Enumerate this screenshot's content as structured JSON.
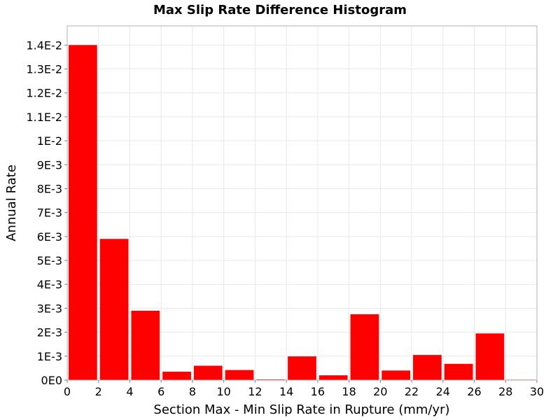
{
  "chart_data": {
    "type": "bar",
    "title": "Max Slip Rate Difference Histogram",
    "xlabel": "Section Max - Min Slip Rate in Rupture (mm/yr)",
    "ylabel": "Annual Rate",
    "xlim": [
      0,
      30
    ],
    "ylim": [
      0,
      0.0148
    ],
    "grid": true,
    "bar_color": "#ff0000",
    "bin_width": 2,
    "bins": [
      {
        "start": 0,
        "end": 2,
        "value": 0.014
      },
      {
        "start": 2,
        "end": 4,
        "value": 0.0059
      },
      {
        "start": 4,
        "end": 6,
        "value": 0.0029
      },
      {
        "start": 6,
        "end": 8,
        "value": 0.00035
      },
      {
        "start": 8,
        "end": 10,
        "value": 0.0006
      },
      {
        "start": 10,
        "end": 12,
        "value": 0.00042
      },
      {
        "start": 12,
        "end": 14,
        "value": 3e-05
      },
      {
        "start": 14,
        "end": 16,
        "value": 0.00099
      },
      {
        "start": 16,
        "end": 18,
        "value": 0.0002
      },
      {
        "start": 18,
        "end": 20,
        "value": 0.00275
      },
      {
        "start": 20,
        "end": 22,
        "value": 0.0004
      },
      {
        "start": 22,
        "end": 24,
        "value": 0.00105
      },
      {
        "start": 24,
        "end": 26,
        "value": 0.00068
      },
      {
        "start": 26,
        "end": 28,
        "value": 0.00195
      },
      {
        "start": 28,
        "end": 30,
        "value": 2e-05
      }
    ],
    "x_ticks": [
      {
        "value": 0,
        "label": "0"
      },
      {
        "value": 2,
        "label": "2"
      },
      {
        "value": 4,
        "label": "4"
      },
      {
        "value": 6,
        "label": "6"
      },
      {
        "value": 8,
        "label": "8"
      },
      {
        "value": 10,
        "label": "10"
      },
      {
        "value": 12,
        "label": "12"
      },
      {
        "value": 14,
        "label": "14"
      },
      {
        "value": 16,
        "label": "16"
      },
      {
        "value": 18,
        "label": "18"
      },
      {
        "value": 20,
        "label": "20"
      },
      {
        "value": 22,
        "label": "22"
      },
      {
        "value": 24,
        "label": "24"
      },
      {
        "value": 26,
        "label": "26"
      },
      {
        "value": 28,
        "label": "28"
      },
      {
        "value": 30,
        "label": "30"
      }
    ],
    "y_ticks": [
      {
        "value": 0,
        "label": "0E0"
      },
      {
        "value": 0.001,
        "label": "1E-3"
      },
      {
        "value": 0.002,
        "label": "2E-3"
      },
      {
        "value": 0.003,
        "label": "3E-3"
      },
      {
        "value": 0.004,
        "label": "4E-3"
      },
      {
        "value": 0.005,
        "label": "5E-3"
      },
      {
        "value": 0.006,
        "label": "6E-3"
      },
      {
        "value": 0.007,
        "label": "7E-3"
      },
      {
        "value": 0.008,
        "label": "8E-3"
      },
      {
        "value": 0.009,
        "label": "9E-3"
      },
      {
        "value": 0.01,
        "label": "1E-2"
      },
      {
        "value": 0.011,
        "label": "1.1E-2"
      },
      {
        "value": 0.012,
        "label": "1.2E-2"
      },
      {
        "value": 0.013,
        "label": "1.3E-2"
      },
      {
        "value": 0.014,
        "label": "1.4E-2"
      }
    ]
  }
}
